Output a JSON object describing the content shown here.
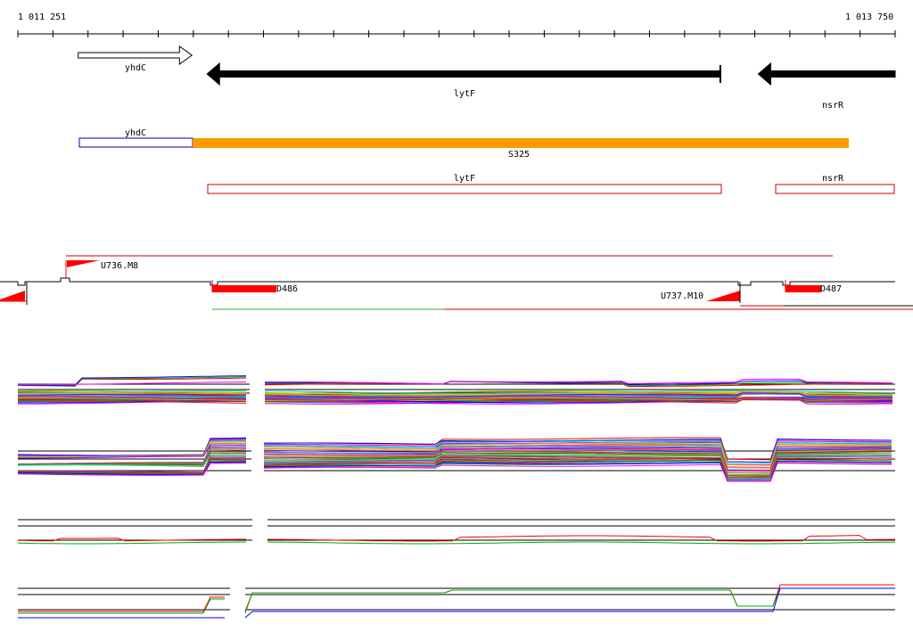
{
  "ruler": {
    "start_label": "1 011 251",
    "end_label": "1 013 750",
    "start_bp": 1011251,
    "end_bp": 1013750
  },
  "genes": [
    {
      "name": "yhdC",
      "strand": "+",
      "start_bp": 1011423,
      "end_bp": 1011747,
      "fill": "white"
    },
    {
      "name": "lytF",
      "strand": "-",
      "start_bp": 1011790,
      "end_bp": 1013252,
      "fill": "black"
    },
    {
      "name": "nsrR",
      "strand": "-",
      "start_bp": 1013360,
      "end_bp": 1013750,
      "fill": "black"
    }
  ],
  "transcript_unit": {
    "name": "S325",
    "label_yhdC": "yhdC",
    "color": "#ff9900"
  },
  "annotations": [
    {
      "name": "lytF",
      "color": "#cc0000"
    },
    {
      "name": "nsrR",
      "color": "#cc0000"
    }
  ],
  "features": {
    "upshifts": [
      "U736.M8",
      "U737.M10"
    ],
    "downshifts": [
      "D486",
      "D487"
    ],
    "color": "#ff0000"
  },
  "colors": {
    "shift_red": "#ff0000",
    "gene_black": "#000000",
    "tu_orange": "#ff9900",
    "outline_blue": "#0000aa",
    "annotation_red": "#cc0000"
  }
}
